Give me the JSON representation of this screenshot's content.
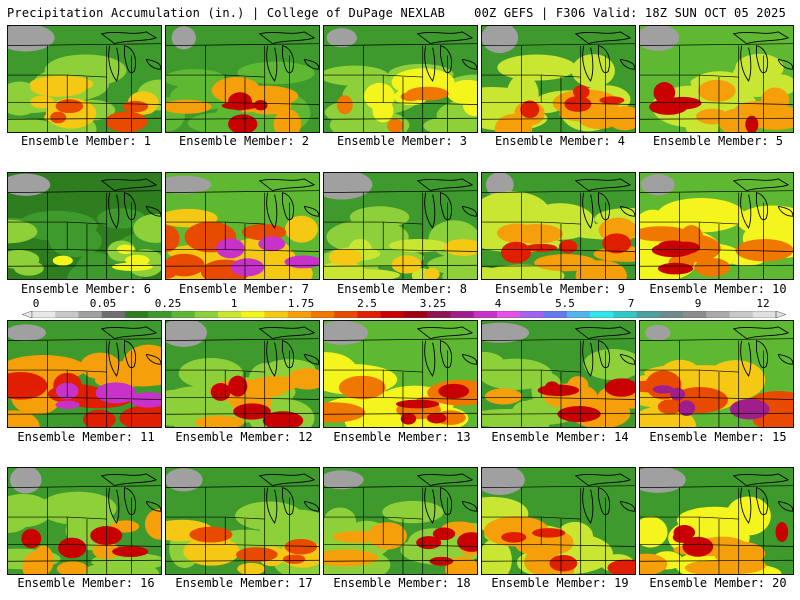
{
  "header": {
    "left": "Precipitation Accumulation (in.) | College of DuPage NEXLAB",
    "right": "00Z GEFS | F306 Valid: 18Z SUN OCT 05 2025"
  },
  "colorbar": {
    "labels": [
      "0",
      "0.05",
      "0.25",
      "1",
      "1.75",
      "2.5",
      "3.25",
      "4",
      "5.5",
      "7",
      "9",
      "12"
    ],
    "colors": [
      "#e8e8e8",
      "#c8c8c8",
      "#a0a0a0",
      "#6e6e6e",
      "#2e7d1e",
      "#3e9a2c",
      "#5fb832",
      "#8ed03a",
      "#c8e632",
      "#f5f51e",
      "#f5c814",
      "#f5a00a",
      "#f07800",
      "#e84a00",
      "#e01e00",
      "#c80000",
      "#a00014",
      "#8c1450",
      "#a01e8c",
      "#c832c8",
      "#e650e6",
      "#a064f0",
      "#6478f0",
      "#50b4f0",
      "#32e6f0",
      "#32c8c8",
      "#50a0a0",
      "#6e8c8c",
      "#8c8c8c",
      "#aaaaaa",
      "#c8c8c8",
      "#e0e0e0"
    ]
  },
  "panels": [
    {
      "label": "Ensemble Member: 1"
    },
    {
      "label": "Ensemble Member: 2"
    },
    {
      "label": "Ensemble Member: 3"
    },
    {
      "label": "Ensemble Member: 4"
    },
    {
      "label": "Ensemble Member: 5"
    },
    {
      "label": "Ensemble Member: 6"
    },
    {
      "label": "Ensemble Member: 7"
    },
    {
      "label": "Ensemble Member: 8"
    },
    {
      "label": "Ensemble Member: 9"
    },
    {
      "label": "Ensemble Member: 10"
    },
    {
      "label": "Ensemble Member: 11"
    },
    {
      "label": "Ensemble Member: 12"
    },
    {
      "label": "Ensemble Member: 13"
    },
    {
      "label": "Ensemble Member: 14"
    },
    {
      "label": "Ensemble Member: 15"
    },
    {
      "label": "Ensemble Member: 16"
    },
    {
      "label": "Ensemble Member: 17"
    },
    {
      "label": "Ensemble Member: 18"
    },
    {
      "label": "Ensemble Member: 19"
    },
    {
      "label": "Ensemble Member: 20"
    }
  ]
}
